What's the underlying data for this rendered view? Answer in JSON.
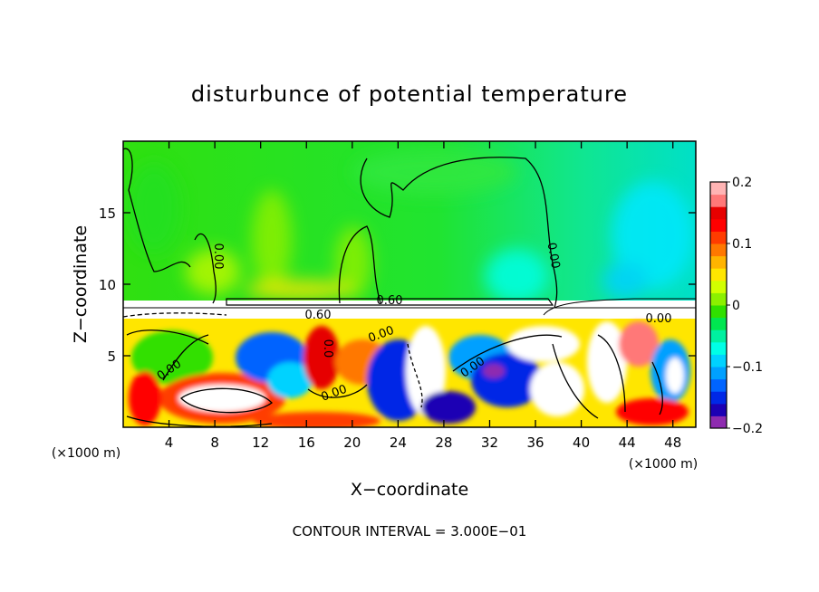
{
  "chart_data": {
    "type": "heatmap",
    "title": "disturbunce of potential temperature",
    "xlabel": "X−coordinate",
    "ylabel": "Z−coordinate",
    "x_unit_left": "(×1000 m)",
    "x_unit_right": "(×1000 m)",
    "xlim": [
      0,
      50
    ],
    "ylim": [
      0,
      20
    ],
    "xticks": [
      4,
      8,
      12,
      16,
      20,
      24,
      28,
      32,
      36,
      40,
      44,
      48
    ],
    "xtick_labels": [
      "4",
      "8",
      "12",
      "16",
      "20",
      "24",
      "28",
      "32",
      "36",
      "40",
      "44",
      "48"
    ],
    "yticks": [
      5,
      10,
      15
    ],
    "ytick_labels": [
      "5",
      "10",
      "15"
    ],
    "contour_interval_text": "CONTOUR INTERVAL = 3.000E−01",
    "contour_labels": [
      {
        "text": "0.60",
        "x": 23.5,
        "z": 8.9
      },
      {
        "text": "0.60",
        "x": 17.0,
        "z": 7.9
      },
      {
        "text": "0.00",
        "x": 22.5,
        "z": 6.8
      },
      {
        "text": "0.00",
        "x": 8.0,
        "z": 11.8
      },
      {
        "text": "0.00",
        "x": 37.8,
        "z": 11.8
      },
      {
        "text": "0.00",
        "x": 4.0,
        "z": 4.5
      },
      {
        "text": "0.00",
        "x": 17.0,
        "z": 2.6
      },
      {
        "text": "0.00",
        "x": 30.0,
        "z": 4.5
      },
      {
        "text": "0.0",
        "x": 17.0,
        "z": 6.0
      },
      {
        "text": "0.00",
        "x": 46.0,
        "z": 7.6
      }
    ],
    "colorbar": {
      "range": [
        -0.2,
        0.2
      ],
      "tick_values": [
        0.2,
        0.1,
        0,
        -0.1,
        -0.2
      ],
      "tick_labels": [
        "0.2",
        "0.1",
        "0",
        "−0.1",
        "−0.2"
      ],
      "colors": [
        "#8e2bb0",
        "#1c00b4",
        "#0028e6",
        "#0064ff",
        "#00a0ff",
        "#00d2ff",
        "#00ffe6",
        "#00f0a0",
        "#00e650",
        "#30e000",
        "#8cf000",
        "#d2ff00",
        "#ffe600",
        "#ffb400",
        "#ff7800",
        "#ff3c00",
        "#ff0000",
        "#e60000",
        "#ff7878",
        "#ffb4b4"
      ]
    },
    "bands": {
      "upper_layer": {
        "z_range": [
          9.2,
          20
        ],
        "dominant_value": 0.02,
        "description": "near-zero disturbance"
      },
      "middle_layer": {
        "z_range": [
          7.6,
          9.2
        ],
        "value": "saturated (white)"
      },
      "lower_layer": {
        "z_range": [
          0,
          7.6
        ],
        "value_range": [
          -0.2,
          0.2
        ]
      }
    }
  }
}
